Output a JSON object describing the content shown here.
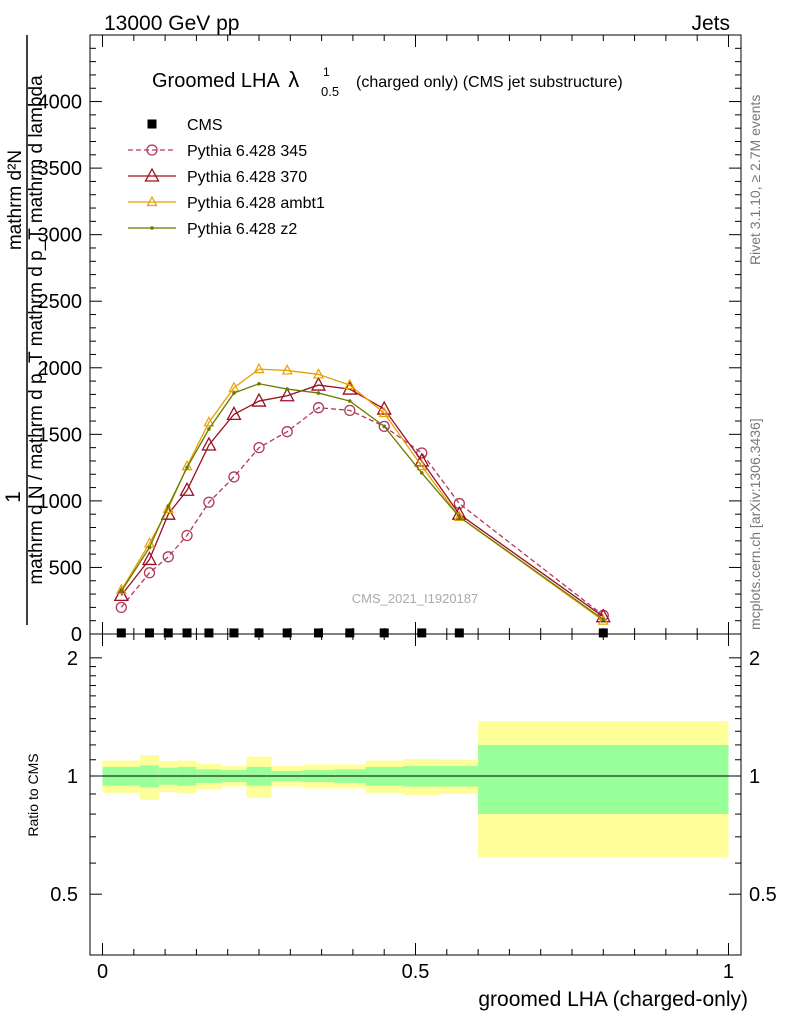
{
  "header": {
    "left": "13000 GeV pp",
    "right": "Jets"
  },
  "side": {
    "rivet": "Rivet 3.1.10, ≥ 2.7M events",
    "mcplots": "mcplots.cern.ch [arXiv:1306.3436]"
  },
  "chart_data": [
    {
      "type": "line",
      "title_main": "Groomed LHA",
      "title_lambda": "λ",
      "title_sup": "1",
      "title_sub": "0.5",
      "title_rest": "(charged only) (CMS jet substructure)",
      "watermark": "CMS_2021_I1920187",
      "ylabel_top": "1",
      "ylabel_num": "mathrm d²N",
      "ylabel_den": "mathrm d N / mathrm d p_T mathrm d p_T mathrm d lambda",
      "ylim": [
        0,
        4500
      ],
      "xlim": [
        -0.02,
        1.02
      ],
      "yticks": [
        0,
        500,
        1000,
        1500,
        2000,
        2500,
        3000,
        3500,
        4000
      ],
      "ytick_labels": [
        "0",
        "500",
        "1000",
        "1500",
        "2000",
        "2500",
        "3000",
        "3500",
        "4000"
      ],
      "legend_position": "top-left",
      "x": [
        0.03,
        0.075,
        0.105,
        0.135,
        0.17,
        0.21,
        0.25,
        0.295,
        0.345,
        0.395,
        0.45,
        0.51,
        0.57,
        0.8
      ],
      "series": [
        {
          "name": "CMS",
          "color": "#000000",
          "style": "data-square",
          "values": [
            8,
            8,
            8,
            8,
            8,
            8,
            8,
            8,
            8,
            8,
            8,
            8,
            8,
            8
          ]
        },
        {
          "name": "Pythia 6.428 345",
          "color": "#b03a5a",
          "style": "dashed-circle",
          "values": [
            200,
            460,
            580,
            740,
            990,
            1180,
            1400,
            1520,
            1700,
            1680,
            1560,
            1360,
            980,
            140
          ]
        },
        {
          "name": "Pythia 6.428 370",
          "color": "#9a0e22",
          "style": "solid-triangle",
          "values": [
            290,
            560,
            900,
            1080,
            1420,
            1650,
            1750,
            1790,
            1870,
            1840,
            1690,
            1300,
            900,
            130
          ]
        },
        {
          "name": "Pythia 6.428 ambt1",
          "color": "#e8a000",
          "style": "solid-triangle-small",
          "values": [
            330,
            680,
            940,
            1260,
            1590,
            1850,
            1990,
            1980,
            1950,
            1870,
            1660,
            1260,
            880,
            100
          ]
        },
        {
          "name": "Pythia 6.428 z2",
          "color": "#6b7a00",
          "style": "solid-dot",
          "values": [
            320,
            650,
            960,
            1250,
            1540,
            1810,
            1880,
            1840,
            1810,
            1750,
            1560,
            1210,
            880,
            110
          ]
        }
      ]
    },
    {
      "type": "area",
      "ylabel": "Ratio to CMS",
      "xlabel": "groomed LHA (charged-only)",
      "xlim": [
        -0.02,
        1.02
      ],
      "ylim": [
        0.35,
        2.3
      ],
      "xticks": [
        0,
        0.5,
        1
      ],
      "xtick_labels": [
        "0",
        "0.5",
        "1"
      ],
      "yticks": [
        0.5,
        1,
        2
      ],
      "ytick_labels": [
        "0.5",
        "1",
        "2"
      ],
      "reference": 1,
      "bins": [
        {
          "lo": 0.0,
          "hi": 0.06,
          "stat": 0.055,
          "total": 0.095
        },
        {
          "lo": 0.06,
          "hi": 0.09,
          "stat": 0.065,
          "total": 0.13
        },
        {
          "lo": 0.09,
          "hi": 0.12,
          "stat": 0.05,
          "total": 0.09
        },
        {
          "lo": 0.12,
          "hi": 0.15,
          "stat": 0.055,
          "total": 0.095
        },
        {
          "lo": 0.15,
          "hi": 0.19,
          "stat": 0.04,
          "total": 0.075
        },
        {
          "lo": 0.19,
          "hi": 0.23,
          "stat": 0.035,
          "total": 0.06
        },
        {
          "lo": 0.23,
          "hi": 0.27,
          "stat": 0.055,
          "total": 0.12
        },
        {
          "lo": 0.27,
          "hi": 0.32,
          "stat": 0.03,
          "total": 0.06
        },
        {
          "lo": 0.32,
          "hi": 0.37,
          "stat": 0.035,
          "total": 0.07
        },
        {
          "lo": 0.37,
          "hi": 0.42,
          "stat": 0.04,
          "total": 0.07
        },
        {
          "lo": 0.42,
          "hi": 0.48,
          "stat": 0.055,
          "total": 0.095
        },
        {
          "lo": 0.48,
          "hi": 0.54,
          "stat": 0.06,
          "total": 0.105
        },
        {
          "lo": 0.54,
          "hi": 0.6,
          "stat": 0.06,
          "total": 0.1
        },
        {
          "lo": 0.6,
          "hi": 1.0,
          "stat": 0.2,
          "total": 0.38
        }
      ],
      "band_colors": {
        "stat": "#99ff99",
        "total": "#ffff99"
      }
    }
  ]
}
